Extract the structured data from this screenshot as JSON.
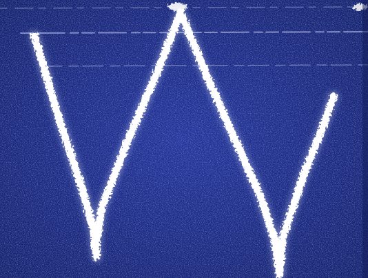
{
  "scene": {
    "description_visible_text": [],
    "colors": {
      "background": "#1f2f8f",
      "background_dark": "#16236e",
      "noise_light": "#8fa0e6",
      "trace": "#ffffff",
      "trace_glow": "#dfe6ff",
      "scanline": "#cfd8ff"
    },
    "shape": "W-shaped white trace"
  }
}
